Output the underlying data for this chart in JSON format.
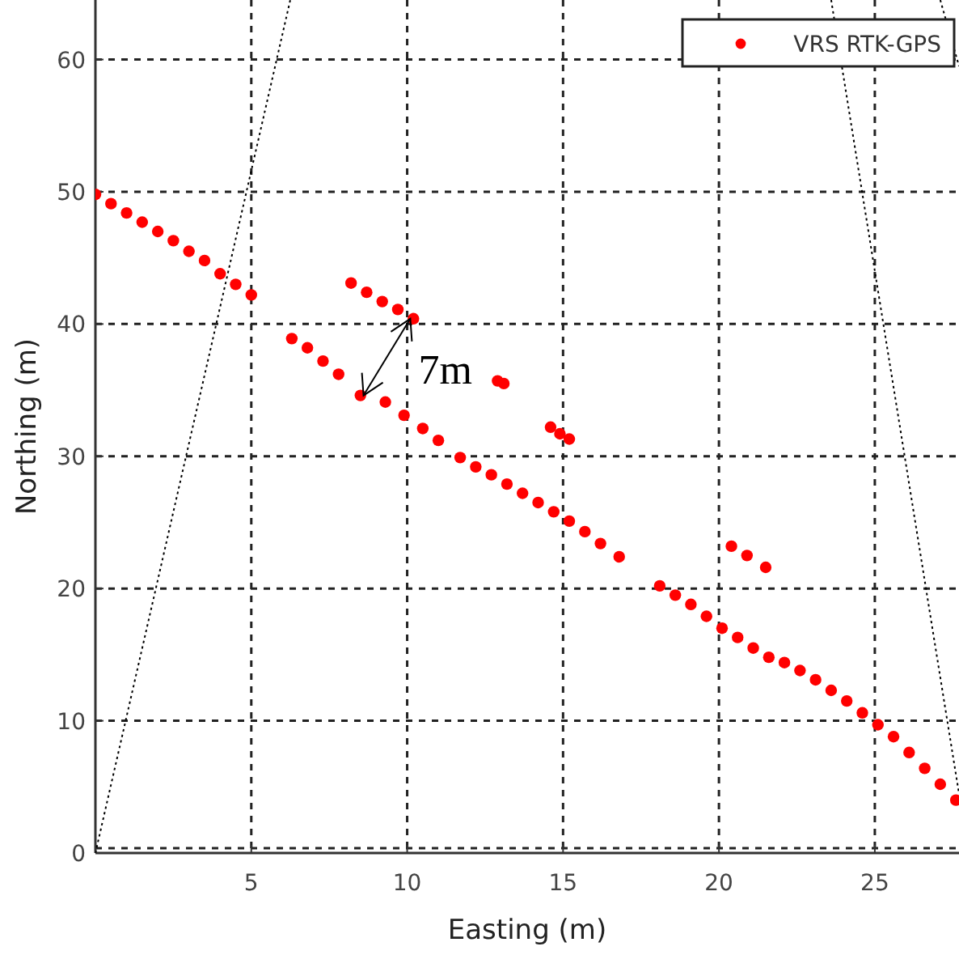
{
  "chart_data": {
    "type": "scatter",
    "xlabel": "Easting (m)",
    "ylabel": "Northing (m)",
    "xlim": [
      0,
      27.7
    ],
    "ylim": [
      0,
      64.5
    ],
    "xticks": [
      5,
      10,
      15,
      20,
      25
    ],
    "yticks": [
      0,
      10,
      20,
      30,
      40,
      50,
      60
    ],
    "grid": true,
    "legend": "top right",
    "series": [
      {
        "name": "VRS RTK-GPS",
        "color": "#ff0000",
        "marker": "circle",
        "x": [
          0,
          0.5,
          1,
          1.5,
          2,
          2.5,
          3,
          3.5,
          4,
          4.5,
          5,
          8.2,
          8.7,
          9.2,
          9.7,
          10.2,
          6.3,
          6.8,
          7.3,
          7.8,
          8.5,
          9.3,
          9.9,
          10.5,
          11.0,
          11.7,
          12.2,
          12.7,
          13.2,
          13.7,
          14.2,
          14.7,
          15.2,
          15.7,
          16.2,
          16.8,
          12.9,
          13.1,
          14.6,
          14.9,
          15.2,
          20.4,
          20.9,
          21.5,
          18.1,
          18.6,
          19.1,
          19.6,
          20.1,
          20.6,
          21.1,
          21.6,
          22.1,
          22.6,
          23.1,
          23.6,
          24.1,
          24.6,
          25.1,
          25.6,
          26.1,
          26.6,
          27.1,
          27.6
        ],
        "values": [
          49.8,
          49.1,
          48.4,
          47.7,
          47.0,
          46.3,
          45.5,
          44.8,
          43.8,
          43.0,
          42.2,
          43.1,
          42.4,
          41.7,
          41.1,
          40.4,
          38.9,
          38.2,
          37.2,
          36.2,
          34.6,
          34.1,
          33.1,
          32.1,
          31.2,
          29.9,
          29.2,
          28.6,
          27.9,
          27.2,
          26.5,
          25.8,
          25.1,
          24.3,
          23.4,
          22.4,
          35.7,
          35.5,
          32.2,
          31.7,
          31.3,
          23.2,
          22.5,
          21.6,
          20.2,
          19.5,
          18.8,
          17.9,
          17.0,
          16.3,
          15.5,
          14.8,
          14.4,
          13.8,
          13.1,
          12.3,
          11.5,
          10.6,
          9.7,
          8.8,
          7.6,
          6.4,
          5.2,
          4.0
        ]
      },
      {
        "type": "line",
        "color": "#000000",
        "line_style": "dotted",
        "marker": "none",
        "x": [
          0,
          6.25
        ],
        "values": [
          0,
          64.5
        ]
      },
      {
        "type": "line",
        "color": "#000000",
        "line_style": "dotted",
        "marker": "none",
        "x": [
          23.6,
          27.7
        ],
        "values": [
          64.5,
          4.5
        ]
      },
      {
        "type": "line",
        "color": "#000000",
        "line_style": "dotted",
        "marker": "none",
        "x": [
          27.1,
          27.7
        ],
        "values": [
          64.5,
          59.5
        ]
      }
    ],
    "annotations": [
      "7m"
    ]
  }
}
